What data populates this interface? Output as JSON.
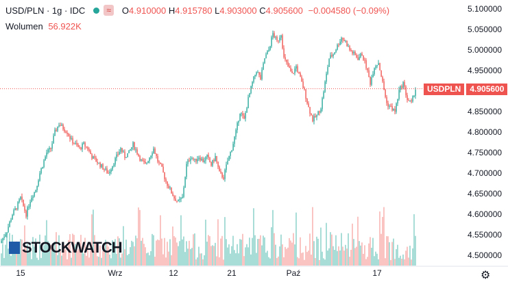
{
  "legend": {
    "symbol": "USD/PLN · 1g · IDC",
    "open_label": "O",
    "open": "4.910000",
    "high_label": "H",
    "high": "4.915780",
    "low_label": "L",
    "low": "4.903000",
    "close_label": "C",
    "close": "4.905600",
    "change": "−0.004580 (−0.09%)"
  },
  "volume": {
    "label": "Wolumen",
    "value": "56.922K"
  },
  "price_tag": {
    "name": "USDPLN",
    "value": "4.905600"
  },
  "watermark": "STOCKWATCH",
  "colors": {
    "up": "#26a69a",
    "down": "#ef5350",
    "up_vol": "#7fcdc4",
    "down_vol": "#f7a9a7"
  },
  "chart_data": {
    "type": "candlestick",
    "y_ticks": [
      "5.100000",
      "5.050000",
      "5.000000",
      "4.950000",
      "4.900000",
      "4.850000",
      "4.800000",
      "4.750000",
      "4.700000",
      "4.650000",
      "4.600000",
      "4.550000",
      "4.500000"
    ],
    "ylim": [
      4.49,
      5.11
    ],
    "x_ticks": [
      "15",
      "Wrz",
      "12",
      "21",
      "Paź",
      "17"
    ],
    "last_price": 4.9056,
    "close_path": [
      [
        0,
        4.53
      ],
      [
        10,
        4.56
      ],
      [
        18,
        4.6
      ],
      [
        25,
        4.62
      ],
      [
        30,
        4.64
      ],
      [
        38,
        4.6
      ],
      [
        45,
        4.64
      ],
      [
        52,
        4.66
      ],
      [
        58,
        4.7
      ],
      [
        62,
        4.72
      ],
      [
        68,
        4.75
      ],
      [
        74,
        4.76
      ],
      [
        80,
        4.8
      ],
      [
        86,
        4.82
      ],
      [
        92,
        4.81
      ],
      [
        98,
        4.8
      ],
      [
        104,
        4.78
      ],
      [
        110,
        4.77
      ],
      [
        116,
        4.76
      ],
      [
        122,
        4.77
      ],
      [
        128,
        4.76
      ],
      [
        134,
        4.74
      ],
      [
        140,
        4.73
      ],
      [
        146,
        4.72
      ],
      [
        152,
        4.71
      ],
      [
        158,
        4.7
      ],
      [
        164,
        4.72
      ],
      [
        170,
        4.74
      ],
      [
        176,
        4.76
      ],
      [
        182,
        4.74
      ],
      [
        188,
        4.75
      ],
      [
        194,
        4.77
      ],
      [
        200,
        4.75
      ],
      [
        206,
        4.73
      ],
      [
        212,
        4.72
      ],
      [
        218,
        4.74
      ],
      [
        224,
        4.76
      ],
      [
        230,
        4.73
      ],
      [
        236,
        4.71
      ],
      [
        242,
        4.68
      ],
      [
        248,
        4.66
      ],
      [
        254,
        4.64
      ],
      [
        260,
        4.63
      ],
      [
        266,
        4.64
      ],
      [
        272,
        4.72
      ],
      [
        278,
        4.74
      ],
      [
        284,
        4.73
      ],
      [
        290,
        4.74
      ],
      [
        296,
        4.73
      ],
      [
        302,
        4.74
      ],
      [
        308,
        4.72
      ],
      [
        314,
        4.74
      ],
      [
        320,
        4.7
      ],
      [
        326,
        4.69
      ],
      [
        332,
        4.73
      ],
      [
        338,
        4.76
      ],
      [
        344,
        4.8
      ],
      [
        350,
        4.85
      ],
      [
        356,
        4.83
      ],
      [
        362,
        4.88
      ],
      [
        368,
        4.92
      ],
      [
        374,
        4.95
      ],
      [
        380,
        4.93
      ],
      [
        386,
        4.98
      ],
      [
        392,
        5.0
      ],
      [
        398,
        5.04
      ],
      [
        404,
        5.02
      ],
      [
        410,
        5.04
      ],
      [
        414,
        4.98
      ],
      [
        420,
        4.96
      ],
      [
        426,
        4.94
      ],
      [
        432,
        4.96
      ],
      [
        438,
        4.93
      ],
      [
        444,
        4.9
      ],
      [
        450,
        4.86
      ],
      [
        456,
        4.83
      ],
      [
        462,
        4.84
      ],
      [
        468,
        4.86
      ],
      [
        474,
        4.92
      ],
      [
        480,
        4.98
      ],
      [
        486,
        4.99
      ],
      [
        492,
        5.01
      ],
      [
        498,
        5.03
      ],
      [
        504,
        5.02
      ],
      [
        510,
        5.0
      ],
      [
        516,
        4.99
      ],
      [
        522,
        4.98
      ],
      [
        528,
        4.99
      ],
      [
        534,
        4.96
      ],
      [
        540,
        4.92
      ],
      [
        546,
        4.96
      ],
      [
        552,
        4.97
      ],
      [
        558,
        4.92
      ],
      [
        564,
        4.87
      ],
      [
        570,
        4.86
      ],
      [
        576,
        4.85
      ],
      [
        582,
        4.9
      ],
      [
        588,
        4.92
      ],
      [
        594,
        4.88
      ],
      [
        600,
        4.87
      ],
      [
        606,
        4.9056
      ]
    ]
  }
}
